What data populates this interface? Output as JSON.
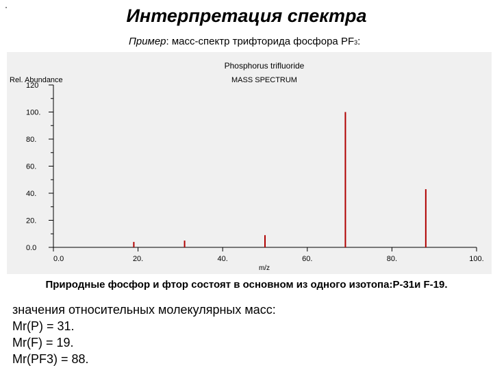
{
  "header": {
    "title": "Интерпретация спектра",
    "subtitle_prefix": "Пример",
    "subtitle_text": ": масс-спектр трифторида фосфора PF",
    "subtitle_sub": "3",
    "subtitle_end": ":"
  },
  "chart_data": {
    "type": "bar",
    "title": "Phosphorus trifluoride",
    "subtitle": "MASS SPECTRUM",
    "ylabel": "Rel. Abundance",
    "xlabel": "m/z",
    "xlim": [
      0,
      100
    ],
    "ylim": [
      0,
      120
    ],
    "x_ticks": [
      0,
      20,
      40,
      60,
      80,
      100
    ],
    "x_tick_labels": [
      "0.0",
      "20.",
      "40.",
      "60.",
      "80.",
      "100."
    ],
    "y_ticks": [
      0,
      20,
      40,
      60,
      80,
      100,
      120
    ],
    "y_tick_labels": [
      "0.0",
      "20.",
      "40.",
      "60.",
      "80.",
      "100.",
      "120"
    ],
    "x": [
      19,
      31,
      50,
      69,
      88
    ],
    "values": [
      4,
      5,
      9,
      100,
      43
    ],
    "bar_color": "#b00000",
    "grid": false
  },
  "caption": "Природные фосфор и фтор состоят в основном из одного изотопа:Р-31и F-19.",
  "values_list": [
    "значения относительных молекулярных масс:",
    "Mr(P) = 31.",
    "Mr(F) = 19.",
    "Mr(PF3) = 88."
  ]
}
